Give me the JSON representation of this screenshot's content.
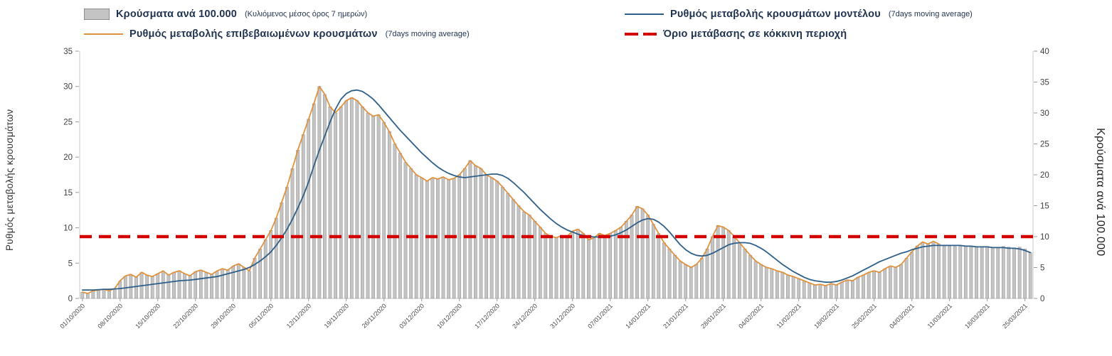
{
  "legend": {
    "items": [
      {
        "id": "cases-bars",
        "label": "Κρούσματα ανά 100.000",
        "note": "(Κυλιόμενος μέσος όρος 7 ημερών)"
      },
      {
        "id": "model-rate",
        "label": "Ρυθμός μεταβολής κρουσμάτων μοντέλου",
        "note": "(7days moving average)"
      },
      {
        "id": "confirmed-rate",
        "label": "Ρυθμός μεταβολής επιβεβαιωμένων κρουσμάτων",
        "note": "(7days moving average)"
      },
      {
        "id": "red-zone-threshold",
        "label": "Όριο μετάβασης σε κόκκινη περιοχή",
        "note": ""
      }
    ]
  },
  "colors": {
    "bar_fill": "#c4c4c4",
    "bar_stroke": "#8c8c8c",
    "model_line": "#2e5f8a",
    "confirmed_line": "#e0923f",
    "threshold": "#d40000",
    "legend_text": "#1f3250",
    "tick_text": "#404040",
    "axis_line": "#c9c9c9"
  },
  "chart_data": {
    "type": "combo bar + line",
    "title": "",
    "points_per_tick": 7,
    "x_tick_labels": [
      "01/10/2020",
      "08/10/2020",
      "15/10/2020",
      "22/10/2020",
      "29/10/2020",
      "05/11/2020",
      "12/11/2020",
      "19/11/2020",
      "26/11/2020",
      "03/12/2020",
      "10/12/2020",
      "17/12/2020",
      "24/12/2020",
      "31/12/2020",
      "07/01/2021",
      "14/01/2021",
      "21/01/2021",
      "28/01/2021",
      "04/02/2021",
      "11/02/2021",
      "18/02/2021",
      "25/02/2021",
      "04/03/2021",
      "11/03/2021",
      "18/03/2021",
      "25/03/2021"
    ],
    "left_axis": {
      "title": "Ρυθμός μεταβολής κρουσμάτων",
      "min": 0,
      "max": 35,
      "step": 5
    },
    "right_axis": {
      "title": "Κρούσματα ανά 100.000",
      "min": 0,
      "max": 40,
      "step": 5
    },
    "bars": {
      "name": "Κρούσματα ανά 100.000 (Κυλιόμενος μέσος όρος 7 ημερών)",
      "axis": "right",
      "values": [
        1.0,
        0.8,
        1.2,
        1.4,
        1.5,
        1.3,
        1.6,
        2.8,
        3.6,
        3.9,
        3.4,
        4.2,
        3.8,
        3.5,
        4.0,
        4.4,
        3.8,
        4.2,
        4.5,
        4.0,
        3.7,
        4.3,
        4.6,
        4.2,
        3.9,
        4.4,
        4.8,
        4.6,
        5.2,
        5.6,
        5.0,
        4.4,
        6.5,
        8.0,
        9.5,
        11.0,
        13.0,
        15.5,
        18.0,
        21.0,
        24.0,
        26.5,
        29.0,
        31.5,
        34.3,
        33.0,
        31.0,
        30.0,
        31.0,
        32.0,
        32.5,
        32.0,
        31.0,
        30.0,
        29.5,
        29.7,
        28.5,
        27.0,
        25.0,
        23.5,
        22.0,
        21.0,
        20.0,
        19.5,
        19.0,
        19.5,
        19.3,
        19.6,
        19.2,
        19.4,
        20.0,
        21.0,
        22.3,
        21.5,
        21.0,
        20.0,
        19.5,
        19.0,
        18.0,
        17.0,
        16.0,
        15.0,
        14.0,
        13.5,
        12.5,
        11.5,
        10.5,
        10.0,
        9.8,
        10.2,
        10.0,
        10.8,
        11.2,
        10.5,
        9.5,
        9.8,
        10.5,
        10.2,
        10.5,
        11.0,
        11.5,
        12.5,
        13.5,
        14.9,
        14.5,
        13.5,
        12.0,
        10.5,
        9.0,
        8.0,
        7.0,
        6.0,
        5.5,
        5.0,
        5.5,
        6.5,
        8.0,
        10.0,
        11.8,
        11.5,
        11.0,
        10.0,
        9.0,
        8.0,
        7.0,
        6.0,
        5.5,
        5.0,
        4.8,
        4.5,
        4.2,
        3.8,
        3.5,
        3.2,
        2.8,
        2.5,
        2.2,
        2.3,
        2.1,
        2.4,
        2.2,
        2.6,
        3.0,
        2.8,
        3.4,
        3.8,
        4.2,
        4.5,
        4.2,
        4.8,
        5.2,
        5.0,
        5.5,
        6.5,
        7.5,
        8.5,
        9.1,
        8.8,
        9.2,
        8.8,
        8.5,
        8.5,
        8.4,
        8.5,
        8.5,
        8.4,
        8.3,
        8.4,
        8.4,
        8.3,
        8.3,
        8.4,
        8.3,
        8.2,
        8.3,
        8.0,
        7.4
      ]
    },
    "series": [
      {
        "id": "confirmed-rate-line",
        "name": "Ρυθμός μεταβολής επιβεβαιωμένων κρουσμάτων (7days moving average)",
        "axis": "left",
        "color_key": "confirmed_line",
        "values": [
          0.9,
          0.7,
          1.1,
          1.2,
          1.3,
          1.1,
          1.4,
          2.5,
          3.2,
          3.4,
          3.0,
          3.7,
          3.3,
          3.1,
          3.5,
          3.9,
          3.3,
          3.7,
          3.9,
          3.5,
          3.2,
          3.8,
          4.0,
          3.7,
          3.4,
          3.9,
          4.2,
          4.0,
          4.6,
          4.9,
          4.4,
          3.9,
          5.7,
          7.0,
          8.3,
          9.6,
          11.4,
          13.6,
          15.8,
          18.4,
          21.0,
          23.2,
          25.4,
          27.6,
          30.0,
          28.9,
          27.1,
          26.3,
          27.1,
          28.0,
          28.4,
          28.0,
          27.1,
          26.3,
          25.8,
          26.0,
          24.9,
          23.6,
          21.9,
          20.6,
          19.3,
          18.4,
          17.5,
          17.1,
          16.6,
          17.1,
          16.9,
          17.2,
          16.8,
          17.0,
          17.5,
          18.4,
          19.5,
          18.8,
          18.4,
          17.5,
          17.1,
          16.6,
          15.8,
          14.9,
          14.0,
          13.1,
          12.3,
          11.8,
          10.9,
          10.1,
          9.2,
          8.8,
          8.6,
          8.9,
          8.8,
          9.5,
          9.8,
          9.2,
          8.3,
          8.6,
          9.2,
          8.9,
          9.2,
          9.6,
          10.1,
          10.9,
          11.8,
          13.0,
          12.7,
          11.8,
          10.5,
          9.2,
          7.9,
          7.0,
          6.1,
          5.3,
          4.8,
          4.4,
          4.8,
          5.7,
          7.0,
          8.8,
          10.3,
          10.1,
          9.6,
          8.8,
          7.9,
          7.0,
          6.1,
          5.3,
          4.8,
          4.4,
          4.2,
          3.9,
          3.7,
          3.3,
          3.1,
          2.8,
          2.5,
          2.2,
          1.9,
          2.0,
          1.8,
          2.1,
          1.9,
          2.3,
          2.6,
          2.5,
          3.0,
          3.3,
          3.7,
          3.9,
          3.7,
          4.2,
          4.6,
          4.4,
          4.8,
          5.7,
          6.6,
          7.4,
          8.0,
          7.7,
          8.1,
          7.7,
          null,
          null,
          null,
          null,
          null,
          null,
          null,
          null,
          null,
          null,
          null,
          null,
          null,
          null,
          null,
          null,
          null
        ]
      },
      {
        "id": "model-rate-line",
        "name": "Ρυθμός μεταβολής κρουσμάτων μοντέλου (7days moving average)",
        "axis": "left",
        "color_key": "model_line",
        "values": [
          1.2,
          1.2,
          1.2,
          1.25,
          1.3,
          1.3,
          1.35,
          1.4,
          1.5,
          1.6,
          1.7,
          1.8,
          1.9,
          2.0,
          2.1,
          2.2,
          2.3,
          2.4,
          2.5,
          2.55,
          2.6,
          2.7,
          2.8,
          2.9,
          3.0,
          3.1,
          3.3,
          3.5,
          3.7,
          3.9,
          4.1,
          4.4,
          4.8,
          5.3,
          5.9,
          6.6,
          7.5,
          8.6,
          9.8,
          11.2,
          12.8,
          14.5,
          16.5,
          18.8,
          21.0,
          23.0,
          25.0,
          26.8,
          28.2,
          29.0,
          29.4,
          29.5,
          29.3,
          28.8,
          28.2,
          27.4,
          26.5,
          25.6,
          24.7,
          23.8,
          23.0,
          22.2,
          21.4,
          20.6,
          19.9,
          19.2,
          18.6,
          18.1,
          17.7,
          17.4,
          17.2,
          17.1,
          17.2,
          17.3,
          17.4,
          17.5,
          17.6,
          17.6,
          17.4,
          17.0,
          16.4,
          15.7,
          15.0,
          14.2,
          13.4,
          12.6,
          11.9,
          11.2,
          10.6,
          10.1,
          9.7,
          9.4,
          9.1,
          8.9,
          8.8,
          8.7,
          8.7,
          8.7,
          8.8,
          9.0,
          9.3,
          9.7,
          10.2,
          10.7,
          11.1,
          11.3,
          11.2,
          10.8,
          10.2,
          9.4,
          8.5,
          7.6,
          6.9,
          6.4,
          6.1,
          6.0,
          6.1,
          6.4,
          6.8,
          7.2,
          7.6,
          7.8,
          7.9,
          7.9,
          7.8,
          7.5,
          7.1,
          6.6,
          6.0,
          5.4,
          4.8,
          4.3,
          3.8,
          3.4,
          3.0,
          2.7,
          2.5,
          2.4,
          2.3,
          2.3,
          2.4,
          2.6,
          2.9,
          3.2,
          3.6,
          4.0,
          4.4,
          4.8,
          5.2,
          5.5,
          5.8,
          6.1,
          6.4,
          6.6,
          6.9,
          7.1,
          7.3,
          7.4,
          7.5,
          7.5,
          7.5,
          7.5,
          7.5,
          7.5,
          7.4,
          7.4,
          7.3,
          7.3,
          7.3,
          7.2,
          7.2,
          7.2,
          7.1,
          7.1,
          7.0,
          6.8,
          6.5
        ]
      }
    ],
    "threshold": {
      "name": "Όριο μετάβασης σε κόκκινη περιοχή",
      "axis": "left",
      "value": 8.75,
      "value_right_axis": 10
    }
  }
}
